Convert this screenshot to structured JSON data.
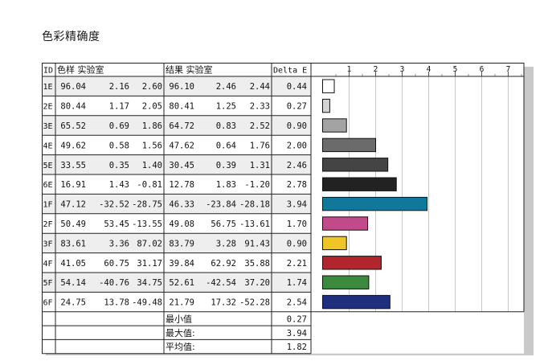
{
  "title": "色彩精确度",
  "table": {
    "headers": [
      "ID",
      "色样 实验室",
      "结果 实验室",
      "Delta E"
    ],
    "rows": [
      {
        "id": "1E",
        "sample": [
          "96.04",
          "2.16",
          "2.60"
        ],
        "result": [
          "96.10",
          "2.46",
          "2.44"
        ],
        "delta": "0.44"
      },
      {
        "id": "2E",
        "sample": [
          "80.44",
          "1.17",
          "2.05"
        ],
        "result": [
          "80.41",
          "1.25",
          "2.33"
        ],
        "delta": "0.27"
      },
      {
        "id": "3E",
        "sample": [
          "65.52",
          "0.69",
          "1.86"
        ],
        "result": [
          "64.72",
          "0.83",
          "2.52"
        ],
        "delta": "0.90"
      },
      {
        "id": "4E",
        "sample": [
          "49.62",
          "0.58",
          "1.56"
        ],
        "result": [
          "47.62",
          "0.64",
          "1.76"
        ],
        "delta": "2.00"
      },
      {
        "id": "5E",
        "sample": [
          "33.55",
          "0.35",
          "1.40"
        ],
        "result": [
          "30.45",
          "0.39",
          "1.31"
        ],
        "delta": "2.46"
      },
      {
        "id": "6E",
        "sample": [
          "16.91",
          "1.43",
          "-0.81"
        ],
        "result": [
          "12.78",
          "1.83",
          "-1.20"
        ],
        "delta": "2.78"
      },
      {
        "id": "1F",
        "sample": [
          "47.12",
          "-32.52",
          "-28.75"
        ],
        "result": [
          "46.33",
          "-23.84",
          "-28.18"
        ],
        "delta": "3.94"
      },
      {
        "id": "2F",
        "sample": [
          "50.49",
          "53.45",
          "-13.55"
        ],
        "result": [
          "49.08",
          "56.75",
          "-13.61"
        ],
        "delta": "1.70"
      },
      {
        "id": "3F",
        "sample": [
          "83.61",
          "3.36",
          "87.02"
        ],
        "result": [
          "83.79",
          "3.28",
          "91.43"
        ],
        "delta": "0.90"
      },
      {
        "id": "4F",
        "sample": [
          "41.05",
          "60.75",
          "31.17"
        ],
        "result": [
          "39.84",
          "62.92",
          "35.88"
        ],
        "delta": "2.21"
      },
      {
        "id": "5F",
        "sample": [
          "54.14",
          "-40.76",
          "34.75"
        ],
        "result": [
          "52.61",
          "-42.54",
          "37.20"
        ],
        "delta": "1.74"
      },
      {
        "id": "6F",
        "sample": [
          "24.75",
          "13.78",
          "-49.48"
        ],
        "result": [
          "21.79",
          "17.32",
          "-52.28"
        ],
        "delta": "2.54"
      }
    ],
    "summary": [
      {
        "label": "最小值",
        "value": "0.27"
      },
      {
        "label": "最大值:",
        "value": "3.94"
      },
      {
        "label": "平均值:",
        "value": "1.82"
      }
    ]
  },
  "chart_data": {
    "type": "bar",
    "orientation": "horizontal",
    "categories": [
      "1E",
      "2E",
      "3E",
      "4E",
      "5E",
      "6E",
      "1F",
      "2F",
      "3F",
      "4F",
      "5F",
      "6F"
    ],
    "values": [
      0.44,
      0.27,
      0.9,
      2.0,
      2.46,
      2.78,
      3.94,
      1.7,
      0.9,
      2.21,
      1.74,
      2.54
    ],
    "colors": [
      "#ffffff",
      "#d4d4d4",
      "#a3a3a3",
      "#6b6b6b",
      "#444444",
      "#222222",
      "#10789a",
      "#c2498a",
      "#f0c526",
      "#b3252c",
      "#3b8a3d",
      "#1f2f7e"
    ],
    "xticks": [
      "1",
      "2",
      "3",
      "4",
      "5",
      "6",
      "7"
    ],
    "xlim": [
      0,
      7.7
    ],
    "grid": true
  }
}
